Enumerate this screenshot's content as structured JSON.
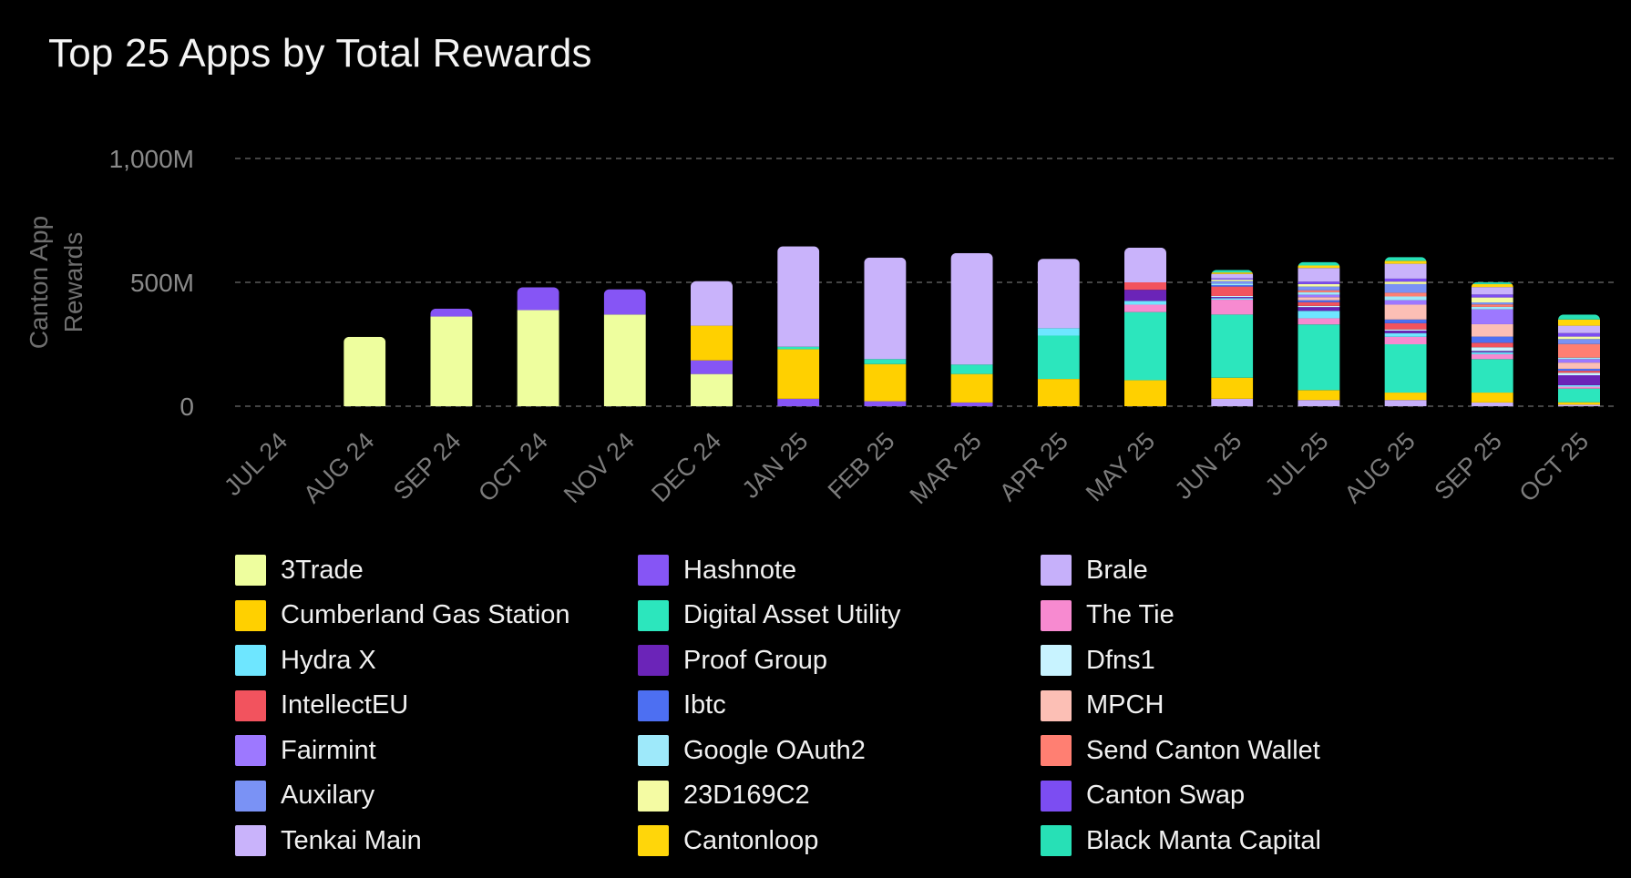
{
  "chart_data": {
    "type": "bar",
    "stacked": true,
    "title": "Top 25 Apps by Total Rewards",
    "xlabel": "",
    "ylabel": "Canton App Rewards",
    "ylim": [
      0,
      1000
    ],
    "yticks": [
      0,
      500,
      1000
    ],
    "ytick_labels": [
      "0",
      "500M",
      "1,000M"
    ],
    "grid": true,
    "legend_position": "bottom",
    "categories": [
      "JUL 24",
      "AUG 24",
      "SEP 24",
      "OCT 24",
      "NOV 24",
      "DEC 24",
      "JAN 25",
      "FEB 25",
      "MAR 25",
      "APR 25",
      "MAY 25",
      "JUN 25",
      "JUL 25",
      "AUG 25",
      "SEP 25",
      "OCT 25"
    ],
    "series": [
      {
        "name": "3Trade",
        "color": "#eefe9e",
        "values": [
          0,
          280,
          362,
          388,
          370,
          130,
          0,
          0,
          0,
          0,
          0,
          0,
          0,
          0,
          0,
          0
        ]
      },
      {
        "name": "Hashnote",
        "color": "#8655f5",
        "values": [
          0,
          0,
          32,
          92,
          102,
          55,
          30,
          20,
          15,
          0,
          0,
          0,
          0,
          0,
          0,
          0
        ]
      },
      {
        "name": "Brale",
        "color": "#c6b0fa",
        "values": [
          0,
          0,
          0,
          0,
          0,
          0,
          0,
          0,
          0,
          0,
          0,
          30,
          25,
          25,
          15,
          6
        ]
      },
      {
        "name": "Cumberland Gas Station",
        "color": "#ffd000",
        "values": [
          0,
          0,
          0,
          0,
          0,
          140,
          200,
          150,
          115,
          110,
          105,
          85,
          40,
          30,
          40,
          10
        ]
      },
      {
        "name": "Digital Asset Utility",
        "color": "#2ce6bd",
        "values": [
          0,
          0,
          0,
          0,
          0,
          0,
          10,
          20,
          38,
          175,
          275,
          255,
          265,
          195,
          135,
          55
        ]
      },
      {
        "name": "The Tie",
        "color": "#f78ad0",
        "values": [
          0,
          0,
          0,
          0,
          0,
          0,
          0,
          0,
          0,
          0,
          30,
          60,
          25,
          30,
          20,
          8
        ]
      },
      {
        "name": "Hydra X",
        "color": "#6ee6ff",
        "values": [
          0,
          0,
          0,
          0,
          0,
          0,
          0,
          0,
          0,
          30,
          15,
          6,
          30,
          15,
          8,
          6
        ]
      },
      {
        "name": "Proof Group",
        "color": "#6b24b8",
        "values": [
          0,
          0,
          0,
          0,
          0,
          0,
          0,
          0,
          0,
          0,
          45,
          5,
          15,
          10,
          5,
          40
        ]
      },
      {
        "name": "Dfns1",
        "color": "#c8f3ff",
        "values": [
          0,
          0,
          0,
          0,
          0,
          0,
          0,
          0,
          0,
          0,
          0,
          4,
          5,
          5,
          15,
          10
        ]
      },
      {
        "name": "IntellectEU",
        "color": "#f2535e",
        "values": [
          0,
          0,
          0,
          0,
          0,
          0,
          0,
          0,
          0,
          0,
          30,
          38,
          15,
          25,
          18,
          8
        ]
      },
      {
        "name": "Ibtc",
        "color": "#4d6ff2",
        "values": [
          0,
          0,
          0,
          0,
          0,
          0,
          0,
          0,
          0,
          0,
          0,
          6,
          8,
          15,
          25,
          8
        ]
      },
      {
        "name": "MPCH",
        "color": "#fcbfb5",
        "values": [
          0,
          0,
          0,
          0,
          0,
          0,
          0,
          0,
          0,
          0,
          0,
          0,
          12,
          60,
          50,
          25
        ]
      },
      {
        "name": "Fairmint",
        "color": "#9d78ff",
        "values": [
          0,
          0,
          0,
          0,
          0,
          0,
          0,
          0,
          0,
          0,
          0,
          0,
          10,
          18,
          60,
          14
        ]
      },
      {
        "name": "Google OAuth2",
        "color": "#9ee9fa",
        "values": [
          0,
          0,
          0,
          0,
          0,
          0,
          0,
          0,
          0,
          0,
          0,
          6,
          10,
          15,
          10,
          6
        ]
      },
      {
        "name": "Send Canton Wallet",
        "color": "#ff7f72",
        "values": [
          0,
          0,
          0,
          0,
          0,
          0,
          0,
          0,
          0,
          0,
          0,
          0,
          8,
          15,
          10,
          55
        ]
      },
      {
        "name": "Auxilary",
        "color": "#7a92f5",
        "values": [
          0,
          0,
          0,
          0,
          0,
          0,
          0,
          0,
          0,
          0,
          0,
          10,
          15,
          35,
          8,
          20
        ]
      },
      {
        "name": "23D169C2",
        "color": "#f4fba3",
        "values": [
          0,
          0,
          0,
          0,
          0,
          0,
          0,
          0,
          0,
          0,
          0,
          6,
          10,
          10,
          20,
          10
        ]
      },
      {
        "name": "Canton Swap",
        "color": "#7c4df2",
        "values": [
          0,
          0,
          0,
          0,
          0,
          0,
          0,
          0,
          0,
          0,
          0,
          5,
          10,
          12,
          12,
          14
        ]
      },
      {
        "name": "Tenkai Main",
        "color": "#c9b3fb",
        "values": [
          0,
          0,
          0,
          0,
          0,
          180,
          405,
          410,
          450,
          280,
          140,
          18,
          55,
          60,
          30,
          30
        ]
      },
      {
        "name": "Cantonloop",
        "color": "#ffd60a",
        "values": [
          0,
          0,
          0,
          0,
          0,
          0,
          0,
          0,
          0,
          0,
          0,
          6,
          10,
          12,
          12,
          25
        ]
      },
      {
        "name": "Black Manta Capital",
        "color": "#27e0b6",
        "values": [
          0,
          0,
          0,
          0,
          0,
          0,
          0,
          0,
          0,
          0,
          0,
          10,
          14,
          15,
          8,
          20
        ]
      }
    ],
    "legend_entries": [
      "3Trade",
      "Hashnote",
      "Brale",
      "Cumberland Gas Station",
      "Digital Asset Utility",
      "The Tie",
      "Hydra X",
      "Proof Group",
      "Dfns1",
      "IntellectEU",
      "Ibtc",
      "MPCH",
      "Fairmint",
      "Google OAuth2",
      "Send Canton Wallet",
      "Auxilary",
      "23D169C2",
      "Canton Swap",
      "Tenkai Main",
      "Cantonloop",
      "Black Manta Capital"
    ]
  }
}
